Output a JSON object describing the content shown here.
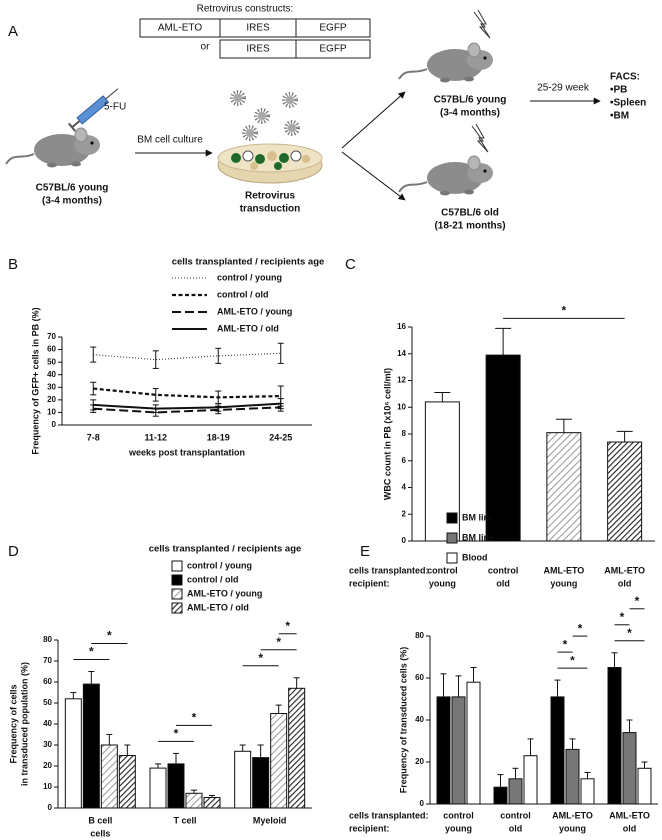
{
  "diagram": {
    "panel": "A",
    "constructs_title": "Retrovirus constructs:",
    "construct_1": [
      "AML-ETO",
      "IRES",
      "EGFP"
    ],
    "or": "or",
    "construct_2": [
      "IRES",
      "EGFP"
    ],
    "drug": "5-FU",
    "donor": [
      "C57BL/6 young",
      "(3-4 months)"
    ],
    "culture": "BM cell culture",
    "transduction": [
      "Retrovirus",
      "transduction"
    ],
    "recipient_young": [
      "C57BL/6 young",
      "(3-4 months)"
    ],
    "recipient_old": [
      "C57BL/6 old",
      "(18-21 months)"
    ],
    "interval": "25-29 week",
    "facs": [
      "FACS:",
      "•PB",
      "•Spleen",
      "•BM"
    ]
  },
  "chart_data": [
    {
      "panel": "B",
      "type": "line",
      "legend_title": "cells transplanted / recipients age",
      "xlabel": "weeks post transplantation",
      "ylabel": "Frequency of GFP+ cells in PB (%)",
      "categories": [
        "7-8",
        "11-12",
        "18-19",
        "24-25"
      ],
      "ylim": [
        0,
        70
      ],
      "yticks": [
        0,
        10,
        20,
        30,
        40,
        50,
        60,
        70
      ],
      "series": [
        {
          "name": "control / young",
          "style": "dotted",
          "color": "#333333",
          "values": [
            56,
            52,
            55,
            57
          ],
          "errors": [
            6,
            7,
            6,
            8
          ]
        },
        {
          "name": "control / old",
          "style": "dashed",
          "color": "#111111",
          "values": [
            29,
            24,
            22,
            23
          ],
          "errors": [
            5,
            5,
            5,
            8
          ]
        },
        {
          "name": "AML-ETO / young",
          "style": "long-dashed",
          "color": "#111111",
          "values": [
            13,
            10,
            12,
            14
          ],
          "errors": [
            3,
            3,
            3,
            3
          ]
        },
        {
          "name": "AML-ETO / old",
          "style": "solid",
          "color": "#111111",
          "values": [
            16,
            13,
            14,
            17
          ],
          "errors": [
            4,
            3,
            3,
            4
          ]
        }
      ]
    },
    {
      "panel": "C",
      "type": "bar",
      "ylabel": "WBC count in PB (x10⁶ cell/ml)",
      "row_labels": [
        "cells transplanted:",
        "recipient:"
      ],
      "categories": [
        [
          "control",
          "young"
        ],
        [
          "control",
          "old"
        ],
        [
          "AML-ETO",
          "young"
        ],
        [
          "AML-ETO",
          "old"
        ]
      ],
      "values": [
        10.4,
        13.9,
        8.1,
        7.4
      ],
      "errors": [
        0.7,
        2.0,
        1.0,
        0.8
      ],
      "fills": [
        "white",
        "black",
        "hatch-light",
        "hatch-dark"
      ],
      "ylim": [
        0,
        16
      ],
      "yticks": [
        0,
        2,
        4,
        6,
        8,
        10,
        12,
        14,
        16
      ],
      "significance": [
        {
          "from": 1,
          "to": 3,
          "label": "*"
        }
      ]
    },
    {
      "panel": "D",
      "type": "grouped_bar",
      "legend_title": "cells transplanted /  recipients age",
      "ylabel": [
        "Frequency of cells",
        "in transduced population (%)"
      ],
      "categories": [
        [
          "B cell",
          "cells"
        ],
        [
          "T cell"
        ],
        [
          "Myeloid"
        ]
      ],
      "series": [
        {
          "name": "control /  young",
          "fill": "white",
          "values": [
            52,
            19,
            27
          ],
          "errors": [
            3,
            2,
            3
          ]
        },
        {
          "name": "control /  old",
          "fill": "black",
          "values": [
            59,
            21,
            24
          ],
          "errors": [
            6,
            5,
            6
          ]
        },
        {
          "name": "AML-ETO /  young",
          "fill": "hatch-light",
          "values": [
            30,
            7,
            45
          ],
          "errors": [
            5,
            1.5,
            4
          ]
        },
        {
          "name": "AML-ETO /  old",
          "fill": "hatch-dark",
          "values": [
            25,
            5,
            57
          ],
          "errors": [
            5,
            1,
            5
          ]
        }
      ],
      "ylim": [
        0,
        80
      ],
      "yticks": [
        0,
        10,
        20,
        30,
        40,
        50,
        60,
        70,
        80
      ],
      "significance": [
        {
          "group": 0,
          "from": 0,
          "to": 2,
          "label": "*"
        },
        {
          "group": 0,
          "from": 1,
          "to": 3,
          "label": "*"
        },
        {
          "group": 1,
          "from": 0,
          "to": 2,
          "label": "*"
        },
        {
          "group": 1,
          "from": 1,
          "to": 3,
          "label": "*"
        },
        {
          "group": 2,
          "from": 0,
          "to": 2,
          "label": "*"
        },
        {
          "group": 2,
          "from": 1,
          "to": 3,
          "label": "*"
        },
        {
          "group": 2,
          "from": 2,
          "to": 3,
          "label": "*"
        }
      ]
    },
    {
      "panel": "E",
      "type": "grouped_bar",
      "ylabel": "Frequency of transduced cells (%)",
      "row_labels": [
        "cells transplanted:",
        "recipient:"
      ],
      "categories": [
        [
          "control",
          "young"
        ],
        [
          "control",
          "old"
        ],
        [
          "AML-ETO",
          "young"
        ],
        [
          "AML-ETO",
          "old"
        ]
      ],
      "series": [
        {
          "name": "BM lin-",
          "fill": "black",
          "values": [
            51,
            8,
            51,
            65
          ],
          "errors": [
            11,
            6,
            8,
            7
          ]
        },
        {
          "name": "BM lin+",
          "fill": "#777777",
          "values": [
            51,
            12,
            26,
            34
          ],
          "errors": [
            10,
            5,
            5,
            6
          ]
        },
        {
          "name": "Blood",
          "fill": "white",
          "values": [
            58,
            23,
            12,
            17
          ],
          "errors": [
            7,
            8,
            3,
            3
          ]
        }
      ],
      "ylim": [
        0,
        80
      ],
      "yticks": [
        0,
        20,
        40,
        60,
        80
      ],
      "significance": [
        {
          "group": 2,
          "from": 0,
          "to": 2,
          "label": "*"
        },
        {
          "group": 2,
          "from": 0,
          "to": 1,
          "label": "*"
        },
        {
          "group": 2,
          "from": 1,
          "to": 2,
          "label": "*"
        },
        {
          "group": 3,
          "from": 0,
          "to": 2,
          "label": "*"
        },
        {
          "group": 3,
          "from": 0,
          "to": 1,
          "label": "*"
        },
        {
          "group": 3,
          "from": 1,
          "to": 2,
          "label": "*"
        }
      ]
    }
  ]
}
